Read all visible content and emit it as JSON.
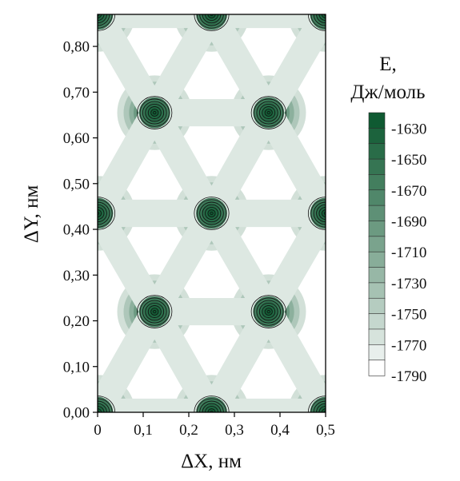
{
  "chart_data": {
    "type": "heatmap",
    "subtype": "contour",
    "xlabel": "ΔX, нм",
    "ylabel": "ΔY, нм",
    "xlim": [
      0,
      0.5
    ],
    "ylim": [
      0,
      0.87
    ],
    "x_ticks": [
      "0",
      "0,1",
      "0,2",
      "0,3",
      "0,4",
      "0,5"
    ],
    "y_ticks": [
      "0,00",
      "0,10",
      "0,20",
      "0,30",
      "0,40",
      "0,50",
      "0,60",
      "0,70",
      "0,80"
    ],
    "colorbar": {
      "title_line1": "E,",
      "title_line2": "Дж/моль",
      "labels": [
        "-1630",
        "-1650",
        "-1670",
        "-1690",
        "-1710",
        "-1730",
        "-1750",
        "-1770",
        "-1790"
      ],
      "min": -1790,
      "max": -1620,
      "low_color": "#ffffff",
      "high_color": "#0f5a32"
    },
    "minima": [
      {
        "x": 0.0,
        "y": 0.0
      },
      {
        "x": 0.25,
        "y": 0.0
      },
      {
        "x": 0.5,
        "y": 0.0
      },
      {
        "x": 0.125,
        "y": 0.22
      },
      {
        "x": 0.375,
        "y": 0.22
      },
      {
        "x": 0.0,
        "y": 0.435
      },
      {
        "x": 0.25,
        "y": 0.435
      },
      {
        "x": 0.5,
        "y": 0.435
      },
      {
        "x": 0.125,
        "y": 0.655
      },
      {
        "x": 0.375,
        "y": 0.655
      },
      {
        "x": 0.0,
        "y": 0.87
      },
      {
        "x": 0.25,
        "y": 0.87
      },
      {
        "x": 0.5,
        "y": 0.87
      }
    ],
    "grid": false
  }
}
